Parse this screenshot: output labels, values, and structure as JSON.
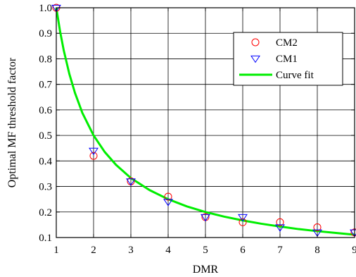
{
  "chart_data": {
    "type": "scatter",
    "title": "",
    "xlabel": "DMR",
    "ylabel": "Optimal MF threshold factor",
    "xlim": [
      1,
      9
    ],
    "ylim": [
      0.1,
      1.0
    ],
    "x_ticks": [
      1,
      2,
      3,
      4,
      5,
      6,
      7,
      8,
      9
    ],
    "y_ticks": [
      0.1,
      0.2,
      0.3,
      0.4,
      0.5,
      0.6,
      0.7,
      0.8,
      0.9,
      1.0
    ],
    "x_tick_labels": [
      "1",
      "2",
      "3",
      "4",
      "5",
      "6",
      "7",
      "8",
      "9"
    ],
    "y_tick_labels": [
      "0.1",
      "0.2",
      "0.3",
      "0.4",
      "0.5",
      "0.6",
      "0.7",
      "0.8",
      "0.9",
      "1.0"
    ],
    "grid": true,
    "legend_position": "top-right",
    "series": [
      {
        "name": "CM2",
        "marker": "circle",
        "color": "#ff0000",
        "x": [
          1,
          2,
          3,
          4,
          5,
          6,
          7,
          8,
          9
        ],
        "y": [
          1.0,
          0.42,
          0.32,
          0.26,
          0.18,
          0.16,
          0.16,
          0.14,
          0.12
        ]
      },
      {
        "name": "CM1",
        "marker": "triangle-down",
        "color": "#0000ff",
        "x": [
          1,
          2,
          3,
          4,
          5,
          6,
          7,
          8,
          9
        ],
        "y": [
          1.0,
          0.44,
          0.32,
          0.24,
          0.18,
          0.18,
          0.14,
          0.12,
          0.12
        ]
      },
      {
        "name": "Curve fit",
        "marker": "line",
        "color": "#00ee00",
        "x": [
          1.0,
          1.1,
          1.2,
          1.35,
          1.5,
          1.7,
          2.0,
          2.3,
          2.6,
          3.0,
          3.5,
          4.0,
          4.5,
          5.0,
          5.5,
          6.0,
          6.5,
          7.0,
          7.5,
          8.0,
          8.5,
          9.0
        ],
        "y": [
          1.0,
          0.909,
          0.833,
          0.741,
          0.667,
          0.588,
          0.5,
          0.435,
          0.385,
          0.333,
          0.286,
          0.25,
          0.222,
          0.2,
          0.182,
          0.167,
          0.154,
          0.143,
          0.133,
          0.125,
          0.118,
          0.111
        ]
      }
    ]
  }
}
